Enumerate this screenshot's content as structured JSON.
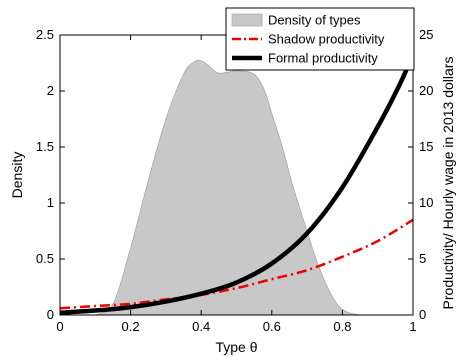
{
  "chart_data": {
    "type": "area",
    "xlabel": "Type θ",
    "ylabel_left": "Density",
    "ylabel_right": "Productivity/ Hourly wage in 2013 dollars",
    "xlim": [
      0,
      1
    ],
    "ylim_left": [
      0,
      2.5
    ],
    "ylim_right": [
      0,
      25
    ],
    "x_ticks": [
      "0",
      "0.2",
      "0.4",
      "0.6",
      "0.8",
      "1"
    ],
    "y_ticks_left": [
      "0",
      "0.5",
      "1",
      "1.5",
      "2",
      "2.5"
    ],
    "y_ticks_right": [
      "0",
      "5",
      "10",
      "15",
      "20",
      "25"
    ],
    "grid": false,
    "legend_position": "top-right",
    "series": [
      {
        "name": "Density of types",
        "axis": "left",
        "style": "filled-area",
        "color": "#c8c8c8",
        "x": [
          0.1,
          0.15,
          0.2,
          0.25,
          0.3,
          0.35,
          0.38,
          0.4,
          0.42,
          0.45,
          0.5,
          0.55,
          0.58,
          0.6,
          0.63,
          0.66,
          0.7,
          0.72,
          0.75,
          0.78,
          0.8,
          0.82,
          0.85
        ],
        "values": [
          0.0,
          0.1,
          0.6,
          1.2,
          1.75,
          2.15,
          2.26,
          2.27,
          2.23,
          2.16,
          2.18,
          2.15,
          2.0,
          1.8,
          1.5,
          1.15,
          0.75,
          0.55,
          0.3,
          0.12,
          0.05,
          0.02,
          0.0
        ]
      },
      {
        "name": "Shadow productivity",
        "axis": "right",
        "style": "dash-dot",
        "color": "#ee0000",
        "x": [
          0,
          0.1,
          0.2,
          0.3,
          0.4,
          0.5,
          0.6,
          0.7,
          0.8,
          0.9,
          1.0
        ],
        "values": [
          0.6,
          0.8,
          1.0,
          1.4,
          1.8,
          2.4,
          3.2,
          4.0,
          5.2,
          6.6,
          8.5
        ]
      },
      {
        "name": "Formal productivity",
        "axis": "right",
        "style": "solid-thick",
        "color": "#000000",
        "x": [
          0,
          0.1,
          0.2,
          0.3,
          0.4,
          0.5,
          0.6,
          0.7,
          0.8,
          0.9,
          0.95,
          0.98,
          1.0
        ],
        "values": [
          0.2,
          0.4,
          0.7,
          1.2,
          1.9,
          2.9,
          4.6,
          7.3,
          11.4,
          16.8,
          19.8,
          21.8,
          23.5
        ]
      }
    ]
  }
}
